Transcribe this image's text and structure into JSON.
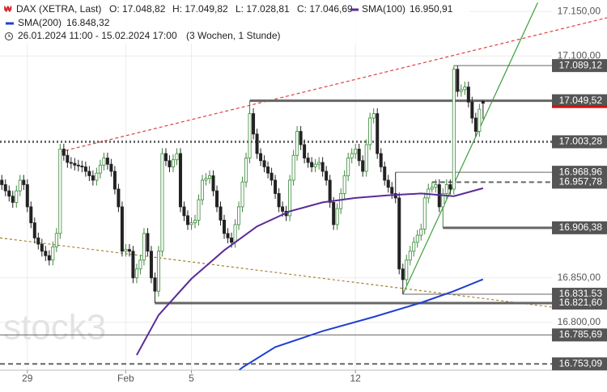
{
  "header": {
    "symbol": "DAX (XETRA, Last)",
    "open": "O: 17.048,82",
    "high": "H: 17.049,82",
    "low": "L: 17.028,81",
    "close": "C: 17.046,69",
    "range": "26.01.2024 11:00 - 15.02.2024 17:00",
    "period": "(3 Wochen, 1 Stunde)",
    "watermark": "stock3"
  },
  "chart_data": {
    "type": "candlestick",
    "up_color": "#3b8a3b",
    "down_color": "#222222",
    "grid": true,
    "xlim": [
      -0.5,
      166
    ],
    "ylim": [
      16746,
      17163
    ],
    "xticks": [
      {
        "value": 7,
        "label": "29"
      },
      {
        "value": 34,
        "label": "Feb"
      },
      {
        "value": 52,
        "label": "5"
      },
      {
        "value": 97,
        "label": "12"
      }
    ],
    "yticks": [
      {
        "value": 16800,
        "label": "16.800,00"
      },
      {
        "value": 16850,
        "label": "16.850,00"
      },
      {
        "value": 17100,
        "label": "17.100,00"
      },
      {
        "value": 17150,
        "label": "17.150,00"
      }
    ],
    "ohlc": [
      [
        16960,
        16966,
        16949,
        16955
      ],
      [
        16955,
        16961,
        16942,
        16948
      ],
      [
        16948,
        16954,
        16936,
        16942
      ],
      [
        16942,
        16948,
        16929,
        16935
      ],
      [
        16935,
        16954,
        16929,
        16948
      ],
      [
        16948,
        16966,
        16942,
        16960
      ],
      [
        16960,
        16966,
        16949,
        16955
      ],
      [
        16955,
        16961,
        16924,
        16930
      ],
      [
        16930,
        16936,
        16906,
        16912
      ],
      [
        16912,
        16918,
        16889,
        16895
      ],
      [
        16895,
        16901,
        16882,
        16888
      ],
      [
        16888,
        16894,
        16874,
        16880
      ],
      [
        16880,
        16886,
        16869,
        16875
      ],
      [
        16875,
        16881,
        16864,
        16870
      ],
      [
        16870,
        16891,
        16864,
        16885
      ],
      [
        16885,
        16906,
        16879,
        16900
      ],
      [
        16900,
        17001,
        16894,
        16995
      ],
      [
        16995,
        17001,
        16982,
        16988
      ],
      [
        16988,
        16994,
        16974,
        16980
      ],
      [
        16980,
        16986,
        16973,
        16979
      ],
      [
        16979,
        16985,
        16971,
        16977
      ],
      [
        16977,
        16983,
        16970,
        16976
      ],
      [
        16976,
        16982,
        16969,
        16975
      ],
      [
        16975,
        16981,
        16964,
        16970
      ],
      [
        16970,
        16976,
        16959,
        16965
      ],
      [
        16965,
        16971,
        16954,
        16960
      ],
      [
        16960,
        16974,
        16954,
        16968
      ],
      [
        16968,
        16983,
        16962,
        16977
      ],
      [
        16977,
        16991,
        16971,
        16985
      ],
      [
        16985,
        16991,
        16972,
        16978
      ],
      [
        16978,
        16984,
        16964,
        16970
      ],
      [
        16970,
        16976,
        16944,
        16950
      ],
      [
        16950,
        16956,
        16924,
        16930
      ],
      [
        16930,
        16936,
        16874,
        16880
      ],
      [
        16880,
        16888,
        16874,
        16882
      ],
      [
        16882,
        16888,
        16874,
        16880
      ],
      [
        16880,
        16886,
        16844,
        16850
      ],
      [
        16850,
        16866,
        16844,
        16860
      ],
      [
        16860,
        16876,
        16854,
        16870
      ],
      [
        16870,
        16906,
        16864,
        16900
      ],
      [
        16900,
        16906,
        16874,
        16880
      ],
      [
        16880,
        16886,
        16844,
        16850
      ],
      [
        16850,
        16856,
        16821.6,
        16835
      ],
      [
        16835,
        16886,
        16829,
        16880
      ],
      [
        16880,
        16996,
        16874,
        16990
      ],
      [
        16990,
        16996,
        16976,
        16982
      ],
      [
        16982,
        16988,
        16969,
        16975
      ],
      [
        16975,
        16989,
        16969,
        16983
      ],
      [
        16983,
        16996,
        16977,
        16990
      ],
      [
        16990,
        16996,
        16924,
        16930
      ],
      [
        16930,
        16936,
        16914,
        16920
      ],
      [
        16920,
        16926,
        16904,
        16910
      ],
      [
        16910,
        16918,
        16904,
        16912
      ],
      [
        16912,
        16921,
        16906,
        16915
      ],
      [
        16915,
        16944,
        16909,
        16938
      ],
      [
        16938,
        16966,
        16932,
        16960
      ],
      [
        16960,
        16968,
        16954,
        16962
      ],
      [
        16962,
        16971,
        16956,
        16965
      ],
      [
        16965,
        16971,
        16942,
        16948
      ],
      [
        16948,
        16954,
        16924,
        16930
      ],
      [
        16930,
        16936,
        16909,
        16915
      ],
      [
        16915,
        16921,
        16894,
        16900
      ],
      [
        16900,
        16906,
        16889,
        16895
      ],
      [
        16895,
        16901,
        16884,
        16890
      ],
      [
        16890,
        16916,
        16884,
        16910
      ],
      [
        16910,
        16936,
        16904,
        16930
      ],
      [
        16930,
        16964,
        16924,
        16958
      ],
      [
        16958,
        16991,
        16952,
        16985
      ],
      [
        16985,
        17049.52,
        16979,
        17035
      ],
      [
        17035,
        17041,
        17006,
        17012
      ],
      [
        17012,
        17018,
        16984,
        16990
      ],
      [
        16990,
        16996,
        16976,
        16982
      ],
      [
        16982,
        16988,
        16969,
        16975
      ],
      [
        16975,
        16981,
        16962,
        16968
      ],
      [
        16968,
        16974,
        16954,
        16960
      ],
      [
        16960,
        16966,
        16939,
        16945
      ],
      [
        16945,
        16951,
        16924,
        16930
      ],
      [
        16930,
        16936,
        16919,
        16925
      ],
      [
        16925,
        16931,
        16914,
        16920
      ],
      [
        16920,
        16966,
        16914,
        16960
      ],
      [
        16960,
        16994,
        16954,
        16988
      ],
      [
        16988,
        17021,
        16982,
        17015
      ],
      [
        17015,
        17021,
        16994,
        17000
      ],
      [
        17000,
        17006,
        16979,
        16985
      ],
      [
        16985,
        16991,
        16974,
        16980
      ],
      [
        16980,
        16986,
        16969,
        16975
      ],
      [
        16975,
        16984,
        16969,
        16978
      ],
      [
        16978,
        16986,
        16972,
        16980
      ],
      [
        16980,
        16986,
        16964,
        16970
      ],
      [
        16970,
        16976,
        16954,
        16960
      ],
      [
        16960,
        16966,
        16929,
        16935
      ],
      [
        16935,
        16941,
        16904,
        16910
      ],
      [
        16910,
        16934,
        16904,
        16928
      ],
      [
        16928,
        16951,
        16922,
        16945
      ],
      [
        16945,
        16971,
        16939,
        16965
      ],
      [
        16965,
        16991,
        16959,
        16985
      ],
      [
        16985,
        16996,
        16979,
        16990
      ],
      [
        16990,
        17001,
        16984,
        16995
      ],
      [
        16995,
        17001,
        16976,
        16982
      ],
      [
        16982,
        16988,
        16964,
        16970
      ],
      [
        16970,
        17006,
        16964,
        17000
      ],
      [
        17000,
        17036,
        16994,
        17030
      ],
      [
        17030,
        17041,
        17024,
        17035
      ],
      [
        17035,
        17041,
        16984,
        16990
      ],
      [
        16990,
        16996,
        16969,
        16975
      ],
      [
        16975,
        16981,
        16954,
        16960
      ],
      [
        16960,
        16966,
        16946,
        16952
      ],
      [
        16952,
        16958,
        16939,
        16945
      ],
      [
        16945,
        16968.96,
        16934,
        16940
      ],
      [
        16940,
        16946,
        16854,
        16860
      ],
      [
        16860,
        16866,
        16831.53,
        16848
      ],
      [
        16848,
        16876,
        16842,
        16870
      ],
      [
        16870,
        16886,
        16864,
        16880
      ],
      [
        16880,
        16896,
        16874,
        16890
      ],
      [
        16890,
        16904,
        16884,
        16898
      ],
      [
        16898,
        16911,
        16892,
        16905
      ],
      [
        16905,
        16946,
        16899,
        16940
      ],
      [
        16940,
        16956,
        16934,
        16950
      ],
      [
        16950,
        16957.78,
        16946,
        16952
      ],
      [
        16952,
        16961,
        16946,
        16955
      ],
      [
        16955,
        16961,
        16924,
        16930
      ],
      [
        16930,
        16951,
        16906.38,
        16945
      ],
      [
        16945,
        16961,
        16939,
        16955
      ],
      [
        16955,
        16961,
        16944,
        16950
      ],
      [
        16950,
        17089.12,
        16944,
        17085
      ],
      [
        17085,
        17089,
        17054,
        17060
      ],
      [
        17060,
        17068,
        17054,
        17062
      ],
      [
        17062,
        17071,
        17056,
        17065
      ],
      [
        17065,
        17071,
        17042,
        17048
      ],
      [
        17048,
        17054,
        17024,
        17030
      ],
      [
        17030,
        17036,
        17009,
        17015
      ],
      [
        17015,
        17046,
        17009,
        17040
      ],
      [
        17048.82,
        17049.82,
        17028.81,
        17046.69
      ]
    ],
    "series": [
      {
        "name": "SMA(100)",
        "last_label": "16.950,91",
        "color": "#5a2a9a",
        "x": [
          37,
          43,
          52,
          61,
          70,
          79,
          88,
          97,
          106,
          115,
          124,
          132
        ],
        "values": [
          16763,
          16808,
          16849,
          16881,
          16908,
          16925,
          16935,
          16940,
          16943,
          16945,
          16942,
          16950.91
        ]
      },
      {
        "name": "SMA(200)",
        "last_label": "16.848,32",
        "color": "#1f3fcf",
        "x": [
          59,
          66,
          75,
          88,
          102,
          115,
          124,
          132
        ],
        "values": [
          16726,
          16749,
          16772,
          16790,
          16806,
          16822,
          16835,
          16848.32
        ]
      }
    ],
    "trendlines": [
      {
        "color": "#e04040",
        "dash": "4 3",
        "x": [
          16,
          166
        ],
        "values": [
          16992,
          17143
        ]
      },
      {
        "color": "#a08030",
        "dash": "3 3",
        "x": [
          -0.5,
          151
        ],
        "values": [
          16895,
          16817
        ]
      },
      {
        "color": "#3aa03a",
        "dash": "none",
        "x": [
          110,
          147
        ],
        "values": [
          16831.53,
          17160
        ]
      }
    ],
    "levels": [
      {
        "value": 17089.12,
        "label": "17.089,12",
        "start": 124,
        "width": 1,
        "dash": "none"
      },
      {
        "value": 17049.52,
        "label": "17.049,52",
        "start": 68,
        "width": 3,
        "dash": "none",
        "accent": "#d01010"
      },
      {
        "value": 17003.28,
        "label": "17.003,28",
        "start": -0.5,
        "width": 3,
        "dash": "2 3"
      },
      {
        "value": 16968.96,
        "label": "16.968,96",
        "start": 108,
        "width": 1,
        "dash": "none"
      },
      {
        "value": 16957.78,
        "label": "16.957,78",
        "start": 118,
        "width": 2,
        "dash": "6 4"
      },
      {
        "value": 16906.38,
        "label": "16.906,38",
        "start": 121,
        "width": 3,
        "dash": "none"
      },
      {
        "value": 16831.53,
        "label": "16.831,53",
        "start": 110,
        "width": 1,
        "dash": "none"
      },
      {
        "value": 16821.6,
        "label": "16.821,60",
        "start": 42,
        "width": 3,
        "dash": "none"
      },
      {
        "value": 16785.69,
        "label": "16.785,69",
        "start": -0.5,
        "width": 1,
        "dash": "none"
      },
      {
        "value": 16753.09,
        "label": "16.753,09",
        "start": -0.5,
        "width": 2,
        "dash": "6 4"
      }
    ]
  }
}
